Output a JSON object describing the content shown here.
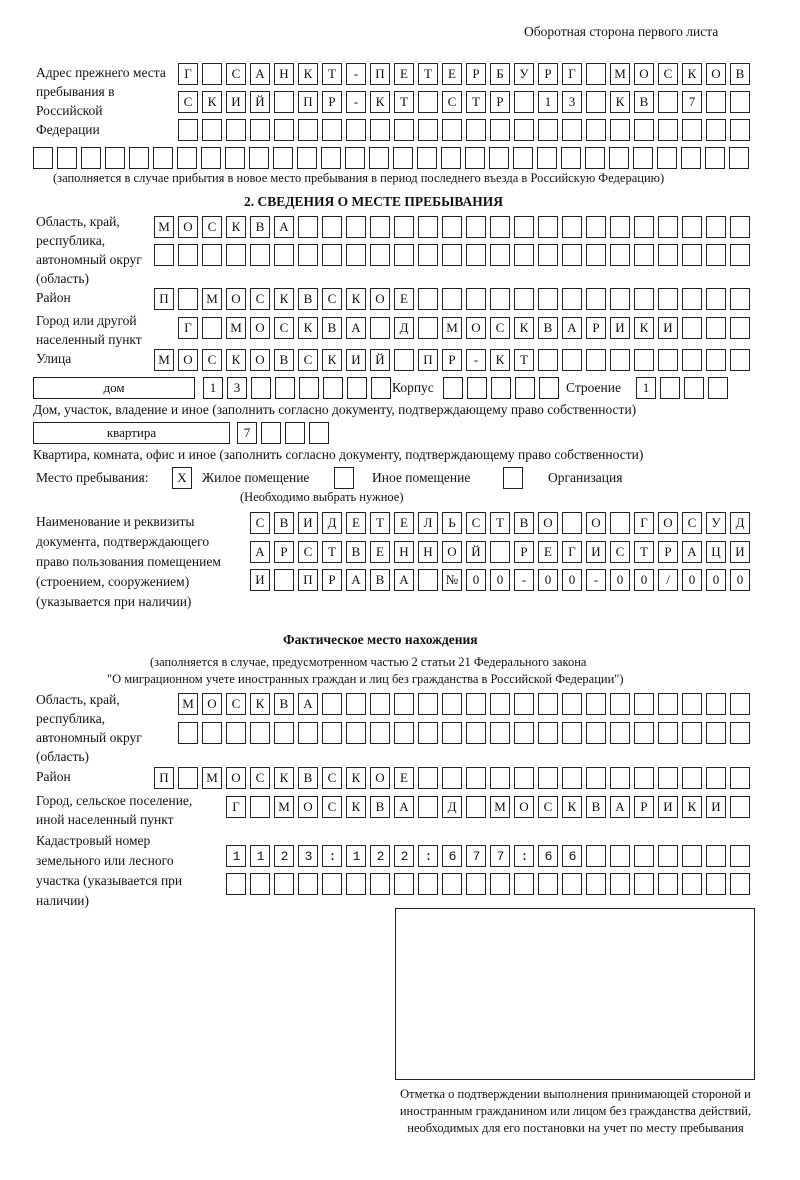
{
  "header": {
    "side_note": "Оборотная сторона первого листа"
  },
  "prev_address": {
    "label": "Адрес прежнего места пребывания в Российской Федерации",
    "rows": [
      "Г САНКТ-ПЕТЕРБУРГ МОСКОВ",
      "СКИЙ ПР-КТ СТР 13 КВ 7",
      "",
      ""
    ],
    "note": "(заполняется в случае прибытия в новое место пребывания в период последнего въезда в Российскую Федерацию)"
  },
  "section2": {
    "title": "2. СВЕДЕНИЯ О МЕСТЕ ПРЕБЫВАНИЯ",
    "region_label": "Область, край, республика, автономный округ (область)",
    "region_rows": [
      "МОСКВА",
      ""
    ],
    "district_label": "Район",
    "district": "П МОСКВСКОЕ",
    "city_label": "Город или другой населенный пункт",
    "city": "Г МОСКВА Д МОСКВАРИКИ",
    "street_label": "Улица",
    "street": "МОСКОВСКИЙ ПР-КТ",
    "house_type": "дом",
    "house": "13",
    "korpus_label": "Корпус",
    "korpus": "",
    "stroenie_label": "Строение",
    "stroenie": "1",
    "house_note": "Дом, участок, владение и иное (заполнить согласно документу, подтверждающему право собственности)",
    "flat_type": "квартира",
    "flat": "7",
    "flat_note": "Квартира, комната, офис и иное (заполнить согласно документу, подтверждающему право собственности)",
    "stay_label": "Место пребывания:",
    "stay_options": [
      {
        "label": "Жилое помещение",
        "mark": "X"
      },
      {
        "label": "Иное помещение",
        "mark": ""
      },
      {
        "label": "Организация",
        "mark": ""
      }
    ],
    "stay_note": "(Необходимо выбрать нужное)",
    "doc_label": "Наименование и реквизиты документа, подтверждающего право пользования помещением (строением, сооружением) (указывается при наличии)",
    "doc_rows": [
      "СВИДЕТЕЛЬСТВО О ГОСУД",
      "АРСТВЕННОЙ РЕГИСТРАЦИ",
      "И ПРАВА №00-00-00/000"
    ]
  },
  "actual": {
    "title": "Фактическое место нахождения",
    "note1": "(заполняется в случае, предусмотренном частью 2 статьи 21 Федерального закона",
    "note2": "\"О миграционном учете иностранных граждан и лиц без гражданства в Российской Федерации\")",
    "region_label": "Область, край, республика, автономный округ (область)",
    "region_rows": [
      "МОСКВА",
      ""
    ],
    "district_label": "Район",
    "district": "П МОСКВСКОЕ",
    "city_label": "Город, сельское поселение, иной населенный пункт",
    "city": "Г МОСКВА Д МОСКВАРИКИ",
    "cadastre_label": "Кадастровый номер земельного или лесного участка (указывается при наличии)",
    "cadastre_rows": [
      "1123:122:677:66",
      ""
    ]
  },
  "stamp": {
    "caption": "Отметка о подтверждении выполнения принимающей стороной и иностранным гражданином или лицом без гражданства действий, необходимых для его постановки на учет по месту пребывания"
  }
}
